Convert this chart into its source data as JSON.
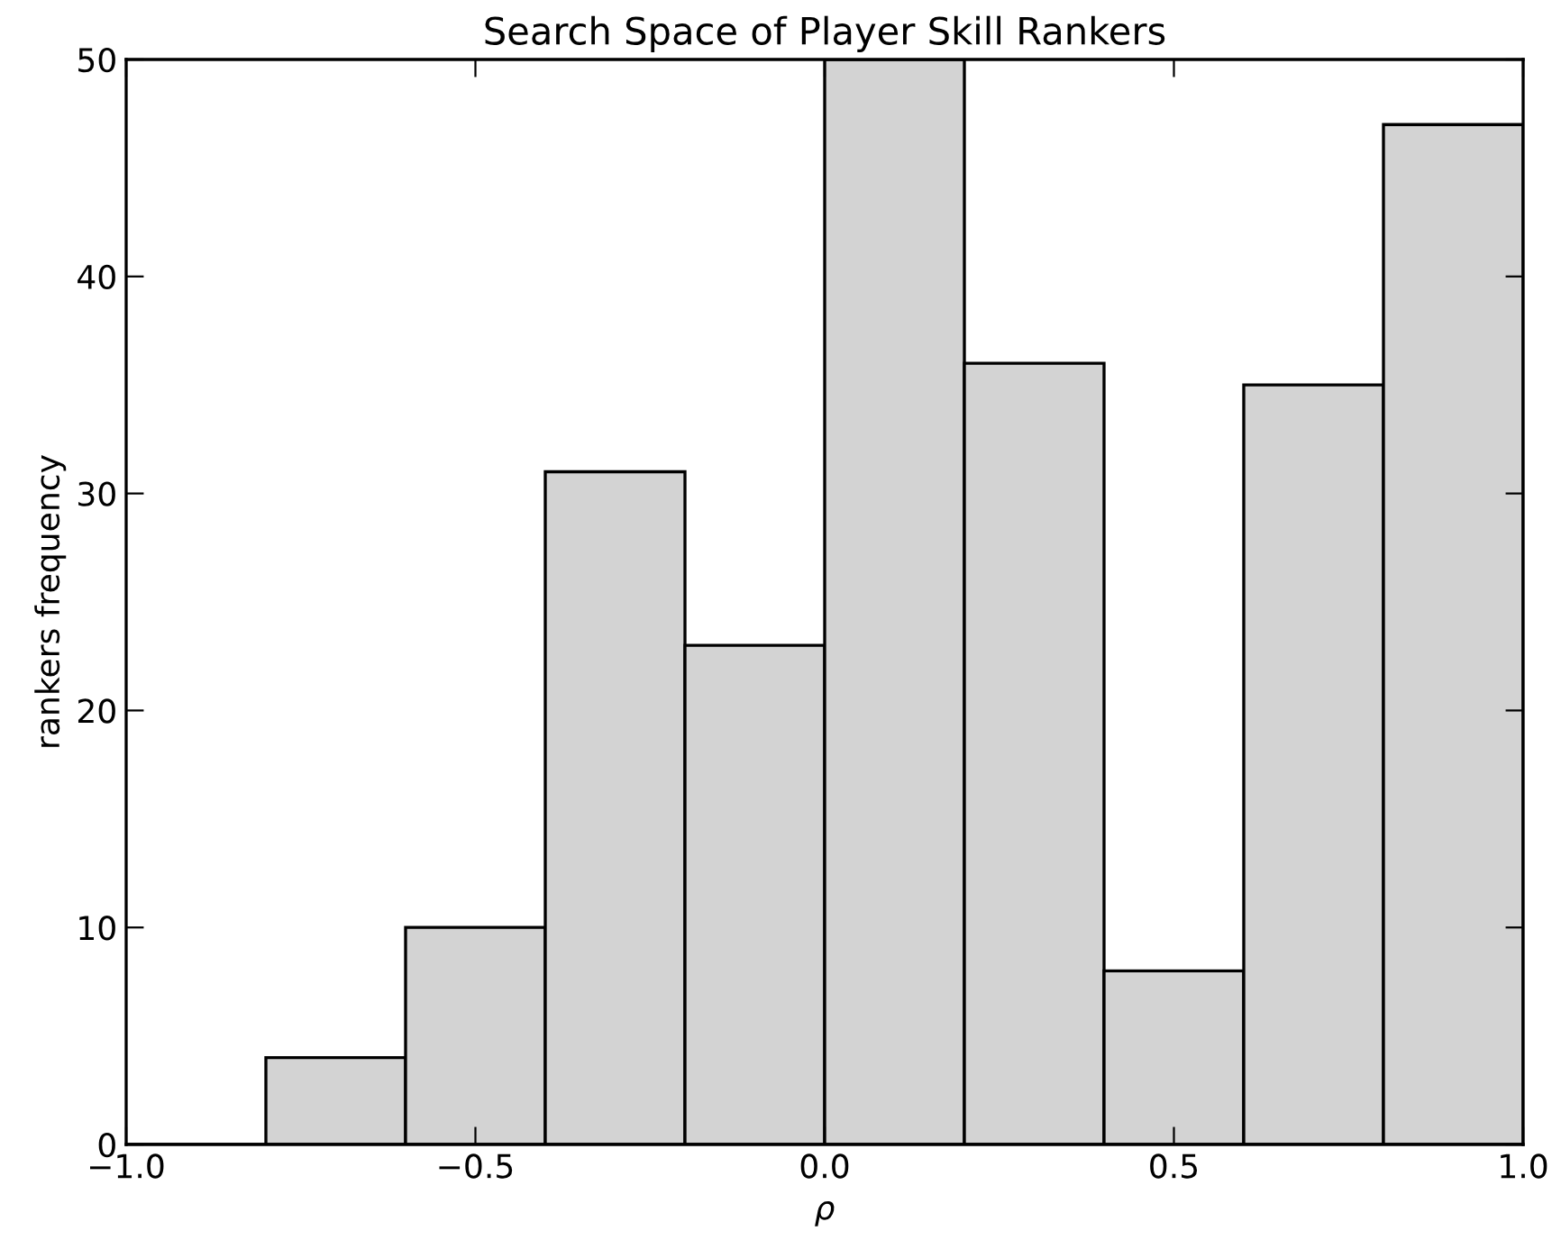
{
  "chart_data": {
    "type": "histogram",
    "title": "Search Space of Player Skill Rankers",
    "xlabel": "ρ",
    "ylabel": "rankers frequency",
    "bins": [
      -1.0,
      -0.8,
      -0.6,
      -0.4,
      -0.2,
      0.0,
      0.2,
      0.4,
      0.6,
      0.8,
      1.0
    ],
    "values": [
      0,
      4,
      10,
      31,
      23,
      50,
      36,
      8,
      35,
      47
    ],
    "color": "#d3d3d3",
    "xlim": [
      -1.0,
      1.0
    ],
    "ylim": [
      0,
      50
    ],
    "xticks": [
      {
        "value": -1.0,
        "label": "−1.0"
      },
      {
        "value": -0.5,
        "label": "−0.5"
      },
      {
        "value": 0.0,
        "label": "0.0"
      },
      {
        "value": 0.5,
        "label": "0.5"
      },
      {
        "value": 1.0,
        "label": "1.0"
      }
    ],
    "yticks": [
      0,
      10,
      20,
      30,
      40,
      50
    ],
    "grid": false,
    "legend": false
  }
}
